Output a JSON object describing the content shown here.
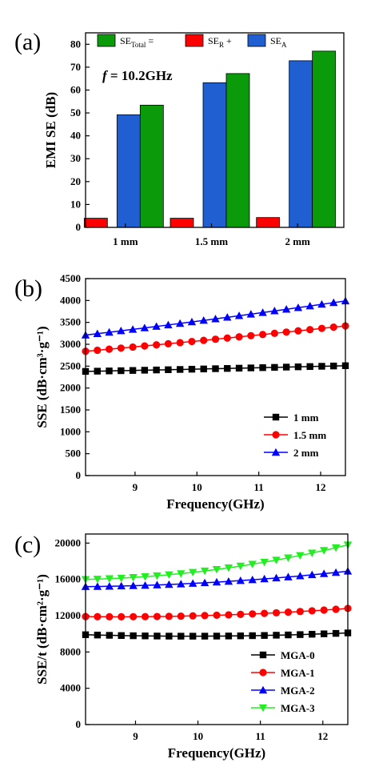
{
  "chart_data": [
    {
      "panel": "(a)",
      "type": "bar",
      "categories": [
        "1 mm",
        "1.5 mm",
        "2 mm"
      ],
      "ylabel": "EMI SE (dB)",
      "ylim": [
        0,
        85
      ],
      "yticks": [
        0,
        10,
        20,
        30,
        40,
        50,
        60,
        70,
        80
      ],
      "annotation_f": "f",
      "annotation_rest": " = 10.2GHz",
      "legend_text": [
        "SE",
        "Total",
        " =",
        "SE",
        "R",
        " +",
        "SE",
        "A"
      ],
      "series": [
        {
          "name": "SE_R",
          "color": "#ff0000",
          "values": [
            4,
            4,
            4.3
          ]
        },
        {
          "name": "SE_A",
          "color": "#1f5fd1",
          "values": [
            49.2,
            63.2,
            72.8
          ]
        },
        {
          "name": "SE_Total",
          "color": "#0a9a0a",
          "values": [
            53.4,
            67.2,
            77.0
          ]
        }
      ]
    },
    {
      "panel": "(b)",
      "type": "line",
      "xlabel": "Frequency(GHz)",
      "ylabel": "SSE (dB·cm³·g⁻¹)",
      "xlim": [
        8.2,
        12.4
      ],
      "ylim": [
        0,
        4500
      ],
      "xticks": [
        9,
        10,
        11,
        12
      ],
      "yticks": [
        0,
        500,
        1000,
        1500,
        2000,
        2500,
        3000,
        3500,
        4000,
        4500
      ],
      "series": [
        {
          "name": "1 mm",
          "color": "#000000",
          "marker": "square",
          "y_start": 2380,
          "y_end": 2510
        },
        {
          "name": "1.5 mm",
          "color": "#ff0000",
          "marker": "circle",
          "y_start": 2840,
          "y_end": 3420
        },
        {
          "name": "2 mm",
          "color": "#0000ff",
          "marker": "triangle-up",
          "y_start": 3210,
          "y_end": 3990
        }
      ]
    },
    {
      "panel": "(c)",
      "type": "line",
      "xlabel": "Frequency(GHz)",
      "ylabel": "SSE/t (dB·cm²·g⁻¹)",
      "xlim": [
        8.2,
        12.4
      ],
      "ylim": [
        0,
        21000
      ],
      "xticks": [
        9,
        10,
        11,
        12
      ],
      "yticks": [
        0,
        4000,
        8000,
        12000,
        16000,
        20000
      ],
      "series": [
        {
          "name": "MGA-0",
          "color": "#000000",
          "marker": "square",
          "y_start": 9900,
          "y_mid": 9750,
          "y_end": 10100
        },
        {
          "name": "MGA-1",
          "color": "#ff0000",
          "marker": "circle",
          "y_start": 11900,
          "y_mid": 12050,
          "y_end": 12800
        },
        {
          "name": "MGA-2",
          "color": "#0000ff",
          "marker": "triangle-up",
          "y_start": 15200,
          "y_mid": 15700,
          "y_end": 16900
        },
        {
          "name": "MGA-3",
          "color": "#22ee22",
          "marker": "triangle-down",
          "y_start": 16000,
          "y_mid": 17100,
          "y_end": 19800
        }
      ]
    }
  ]
}
